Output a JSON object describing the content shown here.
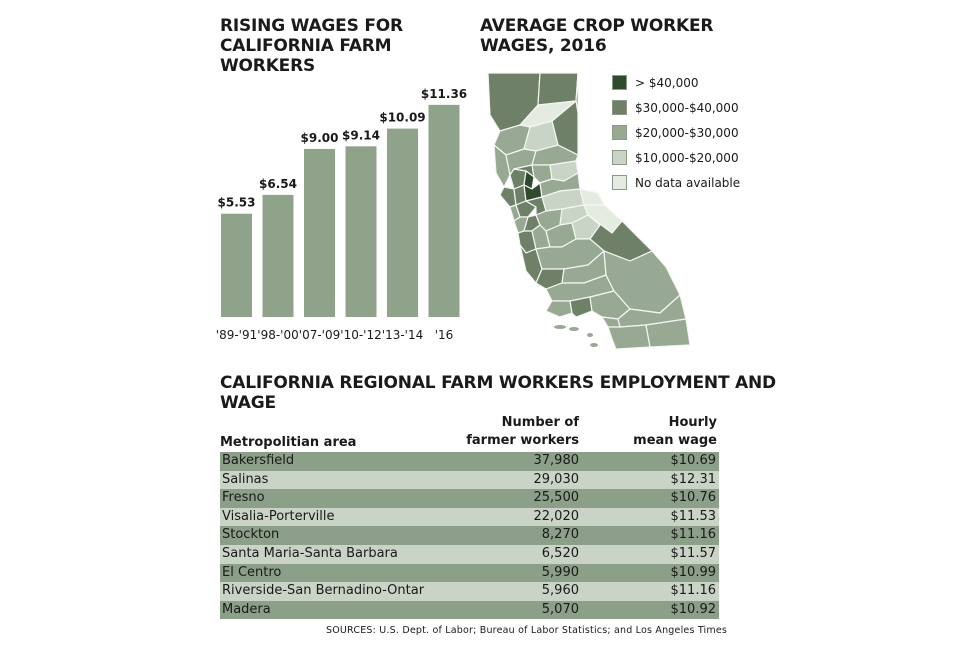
{
  "chart_data": [
    {
      "type": "bar",
      "title": "RISING WAGES FOR CALIFORNIA FARM WORKERS",
      "categories": [
        "'89-'91",
        "'98-'00",
        "'07-'09",
        "'10-'12",
        "'13-'14",
        "'16"
      ],
      "values": [
        5.53,
        6.54,
        9.0,
        9.14,
        10.09,
        11.36
      ],
      "value_labels": [
        "$5.53",
        "$6.54",
        "$9.00",
        "$9.14",
        "$10.09",
        "$11.36"
      ],
      "color": "#8fa38b",
      "ylim": [
        0,
        12
      ],
      "grid": false
    },
    {
      "type": "table",
      "title": "CALIFORNIA REGIONAL FARM WORKERS EMPLOYMENT AND WAGE",
      "columns": [
        "Metropolitian area",
        "Number of farmer workers",
        "Hourly mean wage"
      ],
      "rows": [
        [
          "Bakersfield",
          "37,980",
          "$10.69"
        ],
        [
          "Salinas",
          "29,030",
          "$12.31"
        ],
        [
          "Fresno",
          "25,500",
          "$10.76"
        ],
        [
          "Visalia-Porterville",
          "22,020",
          "$11.53"
        ],
        [
          "Stockton",
          "8,270",
          "$11.16"
        ],
        [
          "Santa Maria-Santa Barbara",
          "6,520",
          "$11.57"
        ],
        [
          "El Centro",
          "5,990",
          "$10.99"
        ],
        [
          "Riverside-San Bernadino-Ontar",
          "5,960",
          "$11.16"
        ],
        [
          "Madera",
          "5,070",
          "$10.92"
        ]
      ]
    }
  ],
  "map": {
    "title": "AVERAGE CROP WORKER WAGES, 2016",
    "legend": [
      {
        "label": "> $40,000",
        "color": "#2f4a2d"
      },
      {
        "label": "$30,000-$40,000",
        "color": "#6e8068"
      },
      {
        "label": "$20,000-$30,000",
        "color": "#97a993"
      },
      {
        "label": "$10,000-$20,000",
        "color": "#c9d4c6"
      },
      {
        "label": "No data available",
        "color": "#e4ece2"
      }
    ]
  },
  "table": {
    "title": "CALIFORNIA REGIONAL FARM WORKERS EMPLOYMENT AND WAGE",
    "headers": {
      "area": "Metropolitian area",
      "workers_line1": "Number of",
      "workers_line2": "farmer workers",
      "wage_line1": "Hourly",
      "wage_line2": "mean wage"
    }
  },
  "sources": "SOURCES:  U.S. Dept. of Labor; Bureau of Labor Statistics; and Los Angeles Times"
}
